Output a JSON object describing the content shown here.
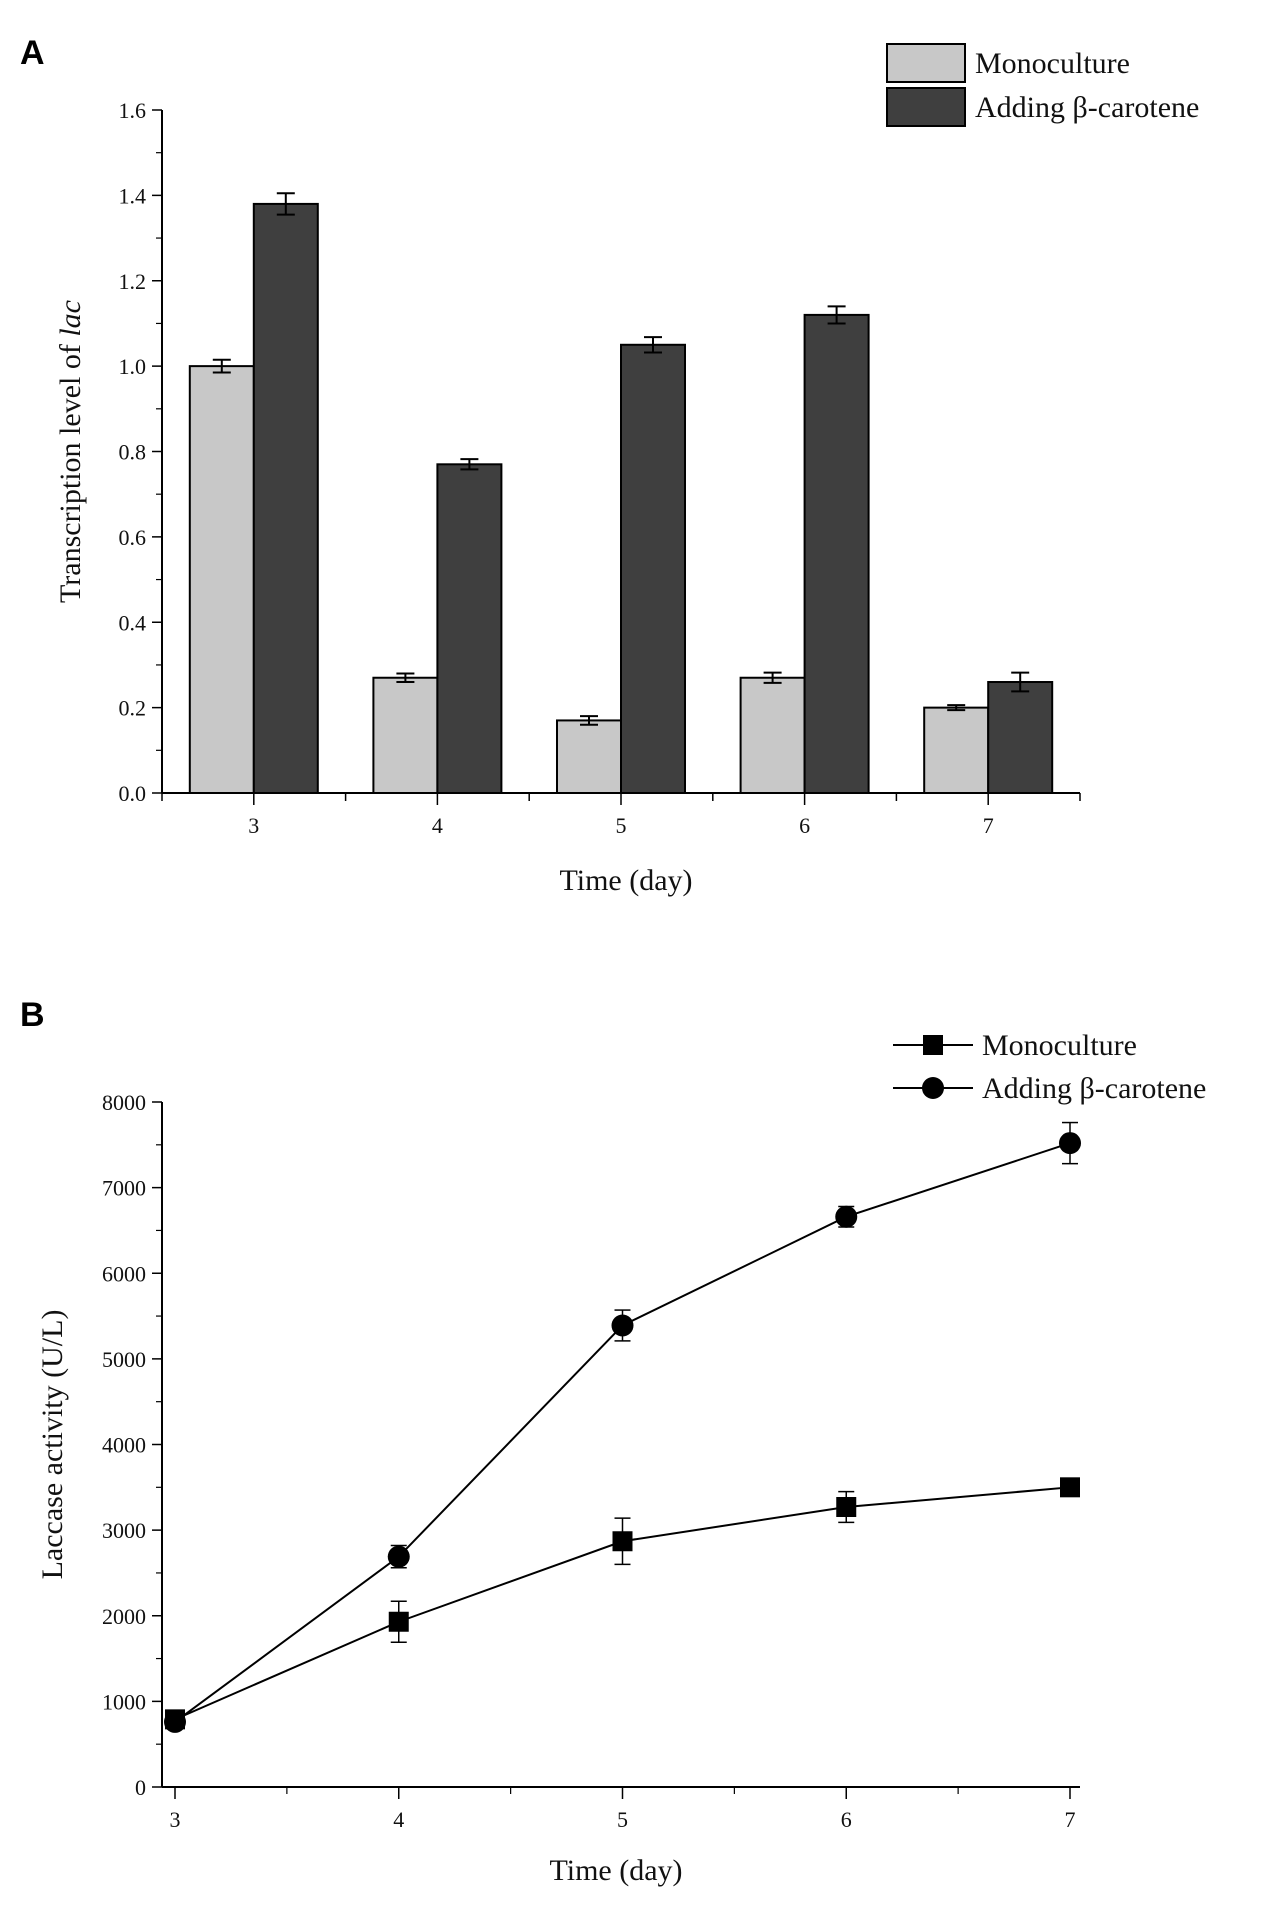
{
  "chart_data": [
    {
      "panel": "A",
      "type": "bar",
      "categories": [
        "3",
        "4",
        "5",
        "6",
        "7"
      ],
      "series": [
        {
          "name": "Monoculture",
          "color": "#c8c8c8",
          "values": [
            1.0,
            0.27,
            0.17,
            0.27,
            0.2
          ],
          "errors": [
            0.015,
            0.01,
            0.01,
            0.012,
            0.006
          ]
        },
        {
          "name": "Adding β-carotene",
          "color": "#3f3f3f",
          "values": [
            1.38,
            0.77,
            1.05,
            1.12,
            0.26
          ],
          "errors": [
            0.025,
            0.012,
            0.018,
            0.02,
            0.022
          ]
        }
      ],
      "xlabel": "Time (day)",
      "ylabel_main": "Transcription level of ",
      "ylabel_italic": "lac",
      "ylim": [
        0,
        1.6
      ],
      "yticks": [
        "0.0",
        "0.2",
        "0.4",
        "0.6",
        "0.8",
        "1.0",
        "1.2",
        "1.4",
        "1.6"
      ],
      "legend_position": "top-right"
    },
    {
      "panel": "B",
      "type": "line",
      "x": [
        3,
        4,
        5,
        6,
        7
      ],
      "xticks": [
        "3",
        "4",
        "5",
        "6",
        "7"
      ],
      "series": [
        {
          "name": "Monoculture",
          "marker": "square",
          "values": [
            790,
            1930,
            2870,
            3270,
            3500
          ],
          "errors": [
            60,
            240,
            270,
            180,
            90
          ]
        },
        {
          "name": "Adding β-carotene",
          "marker": "circle",
          "values": [
            760,
            2690,
            5390,
            6660,
            7520
          ],
          "errors": [
            70,
            130,
            180,
            120,
            240
          ]
        }
      ],
      "xlabel": "Time (day)",
      "ylabel": "Laccase activity (U/L)",
      "ylim": [
        0,
        8000
      ],
      "yticks": [
        "0",
        "1000",
        "2000",
        "3000",
        "4000",
        "5000",
        "6000",
        "7000",
        "8000"
      ],
      "legend_position": "top-right"
    }
  ],
  "panels": {
    "a_letter": "A",
    "b_letter": "B"
  }
}
